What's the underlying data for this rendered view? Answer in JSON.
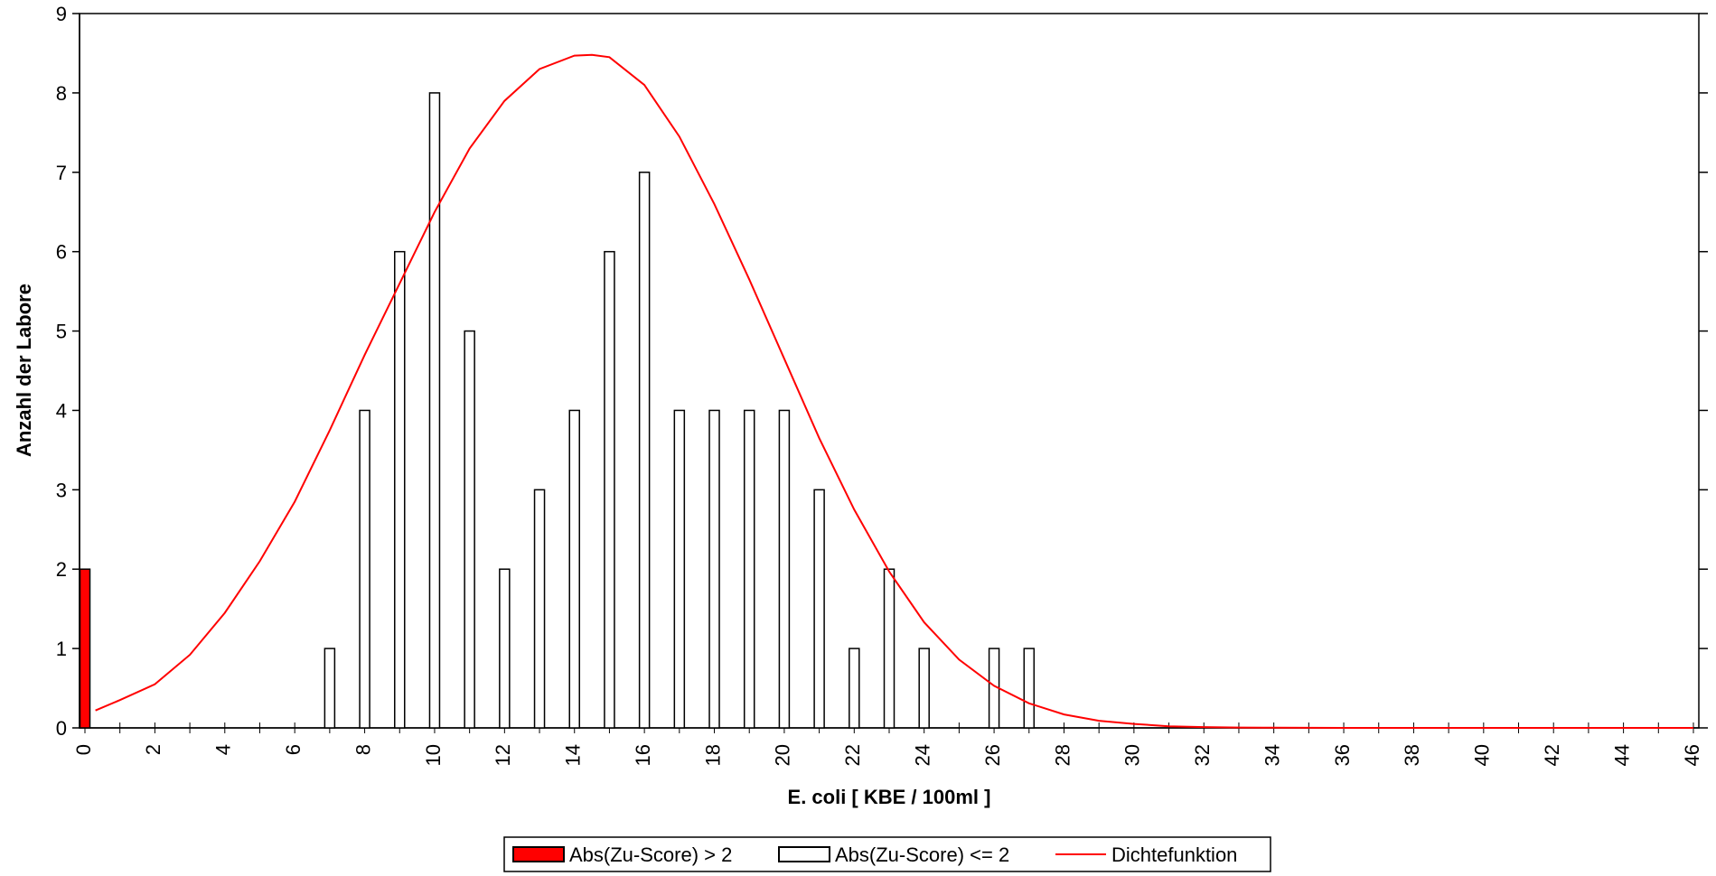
{
  "chart_data": {
    "type": "bar",
    "xlabel": "E. coli [ KBE / 100ml ]",
    "ylabel": "Anzahl der Labore",
    "xlim": [
      0,
      46
    ],
    "ylim": [
      0,
      9
    ],
    "y_ticks": [
      0,
      1,
      2,
      3,
      4,
      5,
      6,
      7,
      8,
      9
    ],
    "x_ticks": [
      0,
      2,
      4,
      6,
      8,
      10,
      12,
      14,
      16,
      18,
      20,
      22,
      24,
      26,
      28,
      30,
      32,
      34,
      36,
      38,
      40,
      42,
      44,
      46
    ],
    "x_tick_labels": [
      "0",
      "2",
      "4",
      "6",
      "8",
      "10",
      "12",
      "14",
      "16",
      "18",
      "20",
      "22",
      "24",
      "26",
      "28",
      "30",
      "32",
      "34",
      "36",
      "38",
      "40",
      "42",
      "44",
      "46"
    ],
    "grid": false,
    "legend_position": "bottom",
    "series": [
      {
        "name": "Abs(Zu-Score) > 2",
        "kind": "bar",
        "color": "#ff0000",
        "points": [
          {
            "x": 0,
            "y": 2
          }
        ]
      },
      {
        "name": "Abs(Zu-Score) <= 2",
        "kind": "bar",
        "color": "#ffffff",
        "points": [
          {
            "x": 7,
            "y": 1
          },
          {
            "x": 8,
            "y": 4
          },
          {
            "x": 9,
            "y": 6
          },
          {
            "x": 10,
            "y": 8
          },
          {
            "x": 11,
            "y": 5
          },
          {
            "x": 12,
            "y": 2
          },
          {
            "x": 13,
            "y": 3
          },
          {
            "x": 14,
            "y": 4
          },
          {
            "x": 15,
            "y": 6
          },
          {
            "x": 16,
            "y": 7
          },
          {
            "x": 17,
            "y": 4
          },
          {
            "x": 18,
            "y": 4
          },
          {
            "x": 19,
            "y": 4
          },
          {
            "x": 20,
            "y": 4
          },
          {
            "x": 21,
            "y": 3
          },
          {
            "x": 22,
            "y": 1
          },
          {
            "x": 23,
            "y": 2
          },
          {
            "x": 24,
            "y": 1
          },
          {
            "x": 26,
            "y": 1
          },
          {
            "x": 27,
            "y": 1
          }
        ]
      },
      {
        "name": "Dichtefunktion",
        "kind": "line",
        "color": "#ff0000",
        "x": [
          0.3,
          1,
          2,
          3,
          4,
          5,
          6,
          7,
          8,
          9,
          10,
          11,
          12,
          13,
          14,
          14.5,
          15,
          16,
          17,
          18,
          19,
          20,
          21,
          22,
          23,
          24,
          25,
          26,
          27,
          28,
          29,
          30,
          31,
          32,
          33,
          34,
          35,
          36,
          38,
          40,
          42,
          44,
          46
        ],
        "y": [
          0.22,
          0.35,
          0.55,
          0.92,
          1.45,
          2.1,
          2.85,
          3.75,
          4.7,
          5.6,
          6.5,
          7.3,
          7.9,
          8.3,
          8.47,
          8.48,
          8.45,
          8.1,
          7.45,
          6.6,
          5.65,
          4.65,
          3.65,
          2.75,
          1.97,
          1.33,
          0.86,
          0.53,
          0.31,
          0.17,
          0.09,
          0.05,
          0.02,
          0.01,
          0.005,
          0.002,
          0.001,
          0.0,
          0.0,
          0.0,
          0.0,
          0.0,
          0.0
        ]
      }
    ]
  }
}
